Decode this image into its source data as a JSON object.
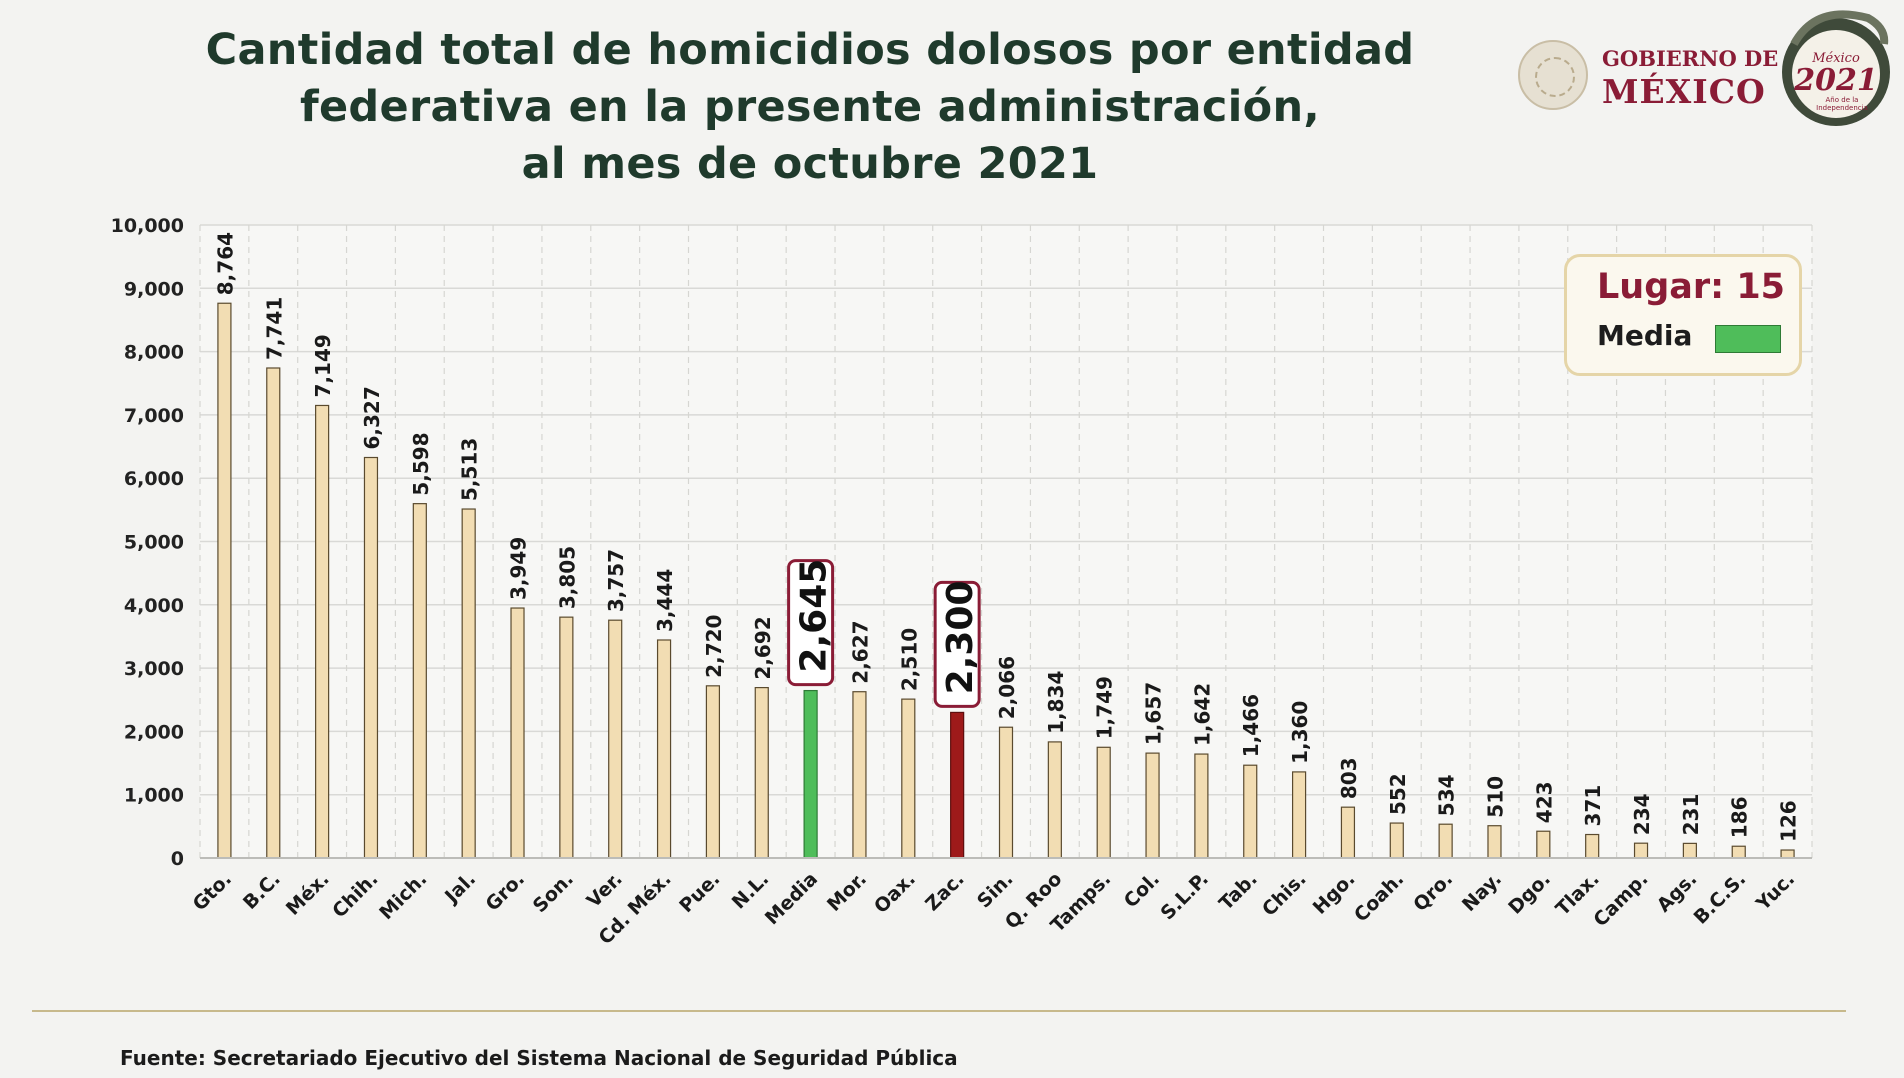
{
  "header": {
    "title_lines": [
      "Cantidad total de homicidios dolosos por entidad",
      "federativa en la presente administración,",
      "al mes de octubre 2021"
    ]
  },
  "branding": {
    "gobierno_line1": "GOBIERNO DE",
    "gobierno_line2": "MÉXICO",
    "seal_icon": "national-seal-icon",
    "logo_2021_top": "México",
    "logo_2021_year": "2021",
    "logo_2021_sub1": "Año de la",
    "logo_2021_sub2": "Independencia"
  },
  "legend": {
    "lugar": "Lugar: 15",
    "media_label": "Media"
  },
  "footer": {
    "source": "Fuente: Secretariado Ejecutivo del Sistema Nacional de Seguridad Pública"
  },
  "colors": {
    "bar_default": "#f2ddb3",
    "bar_border": "#5a4a2e",
    "media": "#4fbd5a",
    "highlight": "#9e1a1a",
    "accent": "#8a1c36",
    "title": "#1f3a2c"
  },
  "chart_data": {
    "type": "bar",
    "title": "Cantidad total de homicidios dolosos por entidad federativa en la presente administración, al mes de octubre 2021",
    "xlabel": "",
    "ylabel": "",
    "ylim": [
      0,
      10000
    ],
    "yticks": [
      0,
      1000,
      2000,
      3000,
      4000,
      5000,
      6000,
      7000,
      8000,
      9000,
      10000
    ],
    "ytick_labels": [
      "0",
      "1,000",
      "2,000",
      "3,000",
      "4,000",
      "5,000",
      "6,000",
      "7,000",
      "8,000",
      "9,000",
      "10,000"
    ],
    "grid": true,
    "legend_position": "top-right",
    "categories": [
      "Gto.",
      "B.C.",
      "Méx.",
      "Chih.",
      "Mich.",
      "Jal.",
      "Gro.",
      "Son.",
      "Ver.",
      "Cd. Méx.",
      "Pue.",
      "N.L.",
      "Media",
      "Mor.",
      "Oax.",
      "Zac.",
      "Sin.",
      "Q. Roo",
      "Tamps.",
      "Col.",
      "S.L.P.",
      "Tab.",
      "Chis.",
      "Hgo.",
      "Coah.",
      "Qro.",
      "Nay.",
      "Dgo.",
      "Tlax.",
      "Camp.",
      "Ags.",
      "B.C.S.",
      "Yuc."
    ],
    "values": [
      8764,
      7741,
      7149,
      6327,
      5598,
      5513,
      3949,
      3805,
      3757,
      3444,
      2720,
      2692,
      2645,
      2627,
      2510,
      2300,
      2066,
      1834,
      1749,
      1657,
      1642,
      1466,
      1360,
      803,
      552,
      534,
      510,
      423,
      371,
      234,
      231,
      186,
      126
    ],
    "value_labels": [
      "8,764",
      "7,741",
      "7,149",
      "6,327",
      "5,598",
      "5,513",
      "3,949",
      "3,805",
      "3,757",
      "3,444",
      "2,720",
      "2,692",
      "2,645",
      "2,627",
      "2,510",
      "2,300",
      "2,066",
      "1,834",
      "1,749",
      "1,657",
      "1,642",
      "1,466",
      "1,360",
      "803",
      "552",
      "534",
      "510",
      "423",
      "371",
      "234",
      "231",
      "186",
      "126"
    ],
    "highlights": {
      "Media": "media",
      "Zac.": "highlight"
    }
  }
}
